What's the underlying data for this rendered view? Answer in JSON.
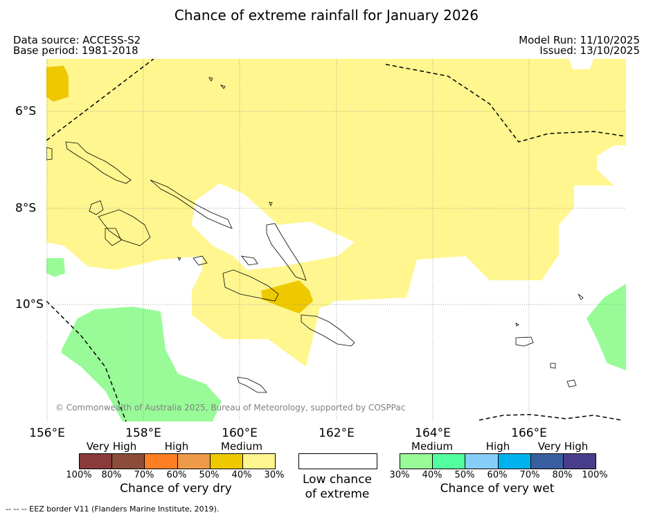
{
  "title": "Chance of extreme rainfall for January 2026",
  "header": {
    "data_source": "Data source: ACCESS-S2",
    "base_period": "Base period: 1981-2018",
    "model_run": "Model Run: 11/10/2025",
    "issued": "Issued: 13/10/2025"
  },
  "map": {
    "lat_labels": [
      "6°S",
      "8°S",
      "10°S"
    ],
    "lon_labels": [
      "156°E",
      "158°E",
      "160°E",
      "162°E",
      "164°E",
      "166°E"
    ],
    "credit": "© Commonwealth of Australia 2025, Bureau of Meteorology, supported by COSPPac",
    "colors": {
      "dry_medium": "#fff68f",
      "dry_50": "#eec900",
      "wet_medium": "#98fb98",
      "grid": "#888888"
    }
  },
  "legend": {
    "dry": {
      "categories": [
        "Very High",
        "High",
        "Medium"
      ],
      "percent_labels": [
        "100%",
        "80%",
        "70%",
        "60%",
        "50%",
        "40%",
        "30%"
      ],
      "colors": [
        "#8b3a3a",
        "#8b4c39",
        "#ff7f24",
        "#ee9a49",
        "#eec900",
        "#fff68f"
      ],
      "caption": "Chance of very dry"
    },
    "low": {
      "caption_line1": "Low chance",
      "caption_line2": "of extreme"
    },
    "wet": {
      "categories": [
        "Medium",
        "High",
        "Very High"
      ],
      "percent_labels": [
        "30%",
        "40%",
        "50%",
        "60%",
        "70%",
        "80%",
        "100%"
      ],
      "colors": [
        "#98fb98",
        "#54ff9f",
        "#87cefa",
        "#00b2ee",
        "#3a5fa0",
        "#483d8b"
      ],
      "caption": "Chance of very wet"
    }
  },
  "footer": {
    "eez_note": "--  --  -- EEZ border V11 (Flanders Marine Institute, 2019)."
  }
}
